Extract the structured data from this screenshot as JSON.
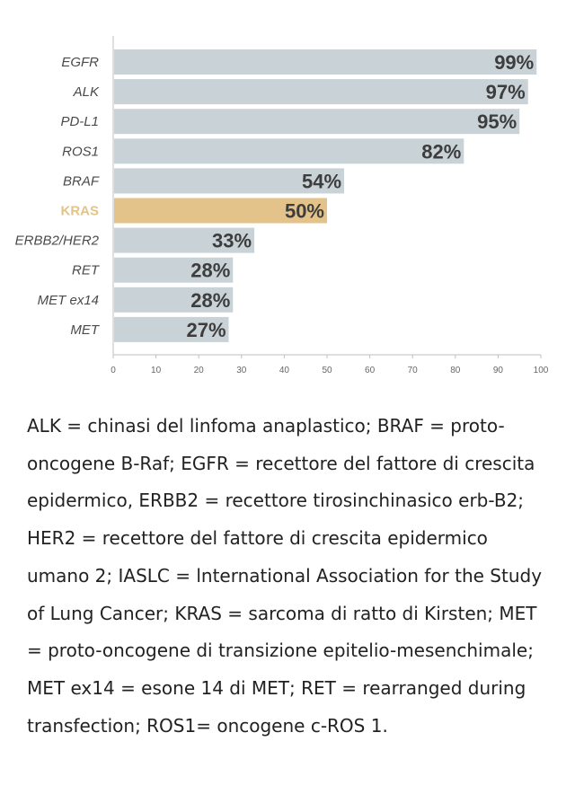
{
  "chart_data": {
    "type": "bar",
    "orientation": "horizontal",
    "categories": [
      "EGFR",
      "ALK",
      "PD-L1",
      "ROS1",
      "BRAF",
      "KRAS",
      "ERBB2/HER2",
      "RET",
      "MET ex14",
      "MET"
    ],
    "values": [
      99,
      97,
      95,
      82,
      54,
      50,
      33,
      28,
      28,
      27
    ],
    "value_labels": [
      "99%",
      "97%",
      "95%",
      "82%",
      "54%",
      "50%",
      "33%",
      "28%",
      "28%",
      "27%"
    ],
    "highlighted": "KRAS",
    "xlim": [
      0,
      100
    ],
    "xticks": [
      0,
      10,
      20,
      30,
      40,
      50,
      60,
      70,
      80,
      90,
      100
    ],
    "title": "",
    "xlabel": "",
    "ylabel": "",
    "colors": {
      "bar": "#c9d2d6",
      "highlight": "#e3c38a",
      "highlight_label": "#e3c38a",
      "axis": "#bfbfbf"
    }
  },
  "footnote": "ALK = chinasi del linfoma anaplastico; BRAF = proto-oncogene B-Raf; EGFR = recettore del fattore di crescita epidermico, ERBB2 = recettore tirosinchinasico erb-B2; HER2 = recettore del fattore di crescita epidermico umano 2; IASLC = lnternational Association for the Study of Lung Cancer; KRAS = sarcoma di ratto di Kirsten; MET = proto-oncogene di transizione epitelio-mesenchimale; MET ex14 = esone 14 di MET; RET = rearranged during transfection; ROS1= oncogene c-ROS 1."
}
